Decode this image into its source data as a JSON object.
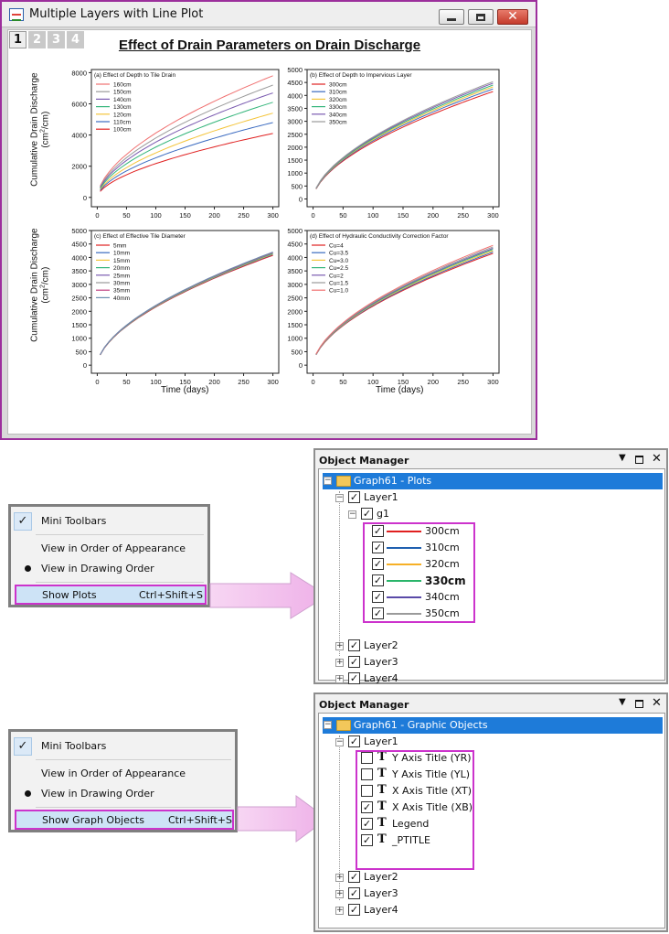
{
  "window": {
    "title": "Multiple Layers with Line Plot",
    "layer_tabs": [
      "1",
      "2",
      "3",
      "4"
    ],
    "active_layer": "1"
  },
  "graph": {
    "title": "Effect of Drain Parameters on Drain Discharge",
    "ylabel_line1": "Cumulative Drain Discharge",
    "ylabel_unit": "(cm",
    "ylabel_unit_sup": "2",
    "ylabel_unit_end": "/cm)",
    "xlabel": "Time (days)"
  },
  "chart_data": [
    {
      "type": "line",
      "title": "(a) Effect of Depth to Tile Drain",
      "x": [
        0,
        50,
        100,
        150,
        200,
        250,
        300
      ],
      "xlim": [
        -10,
        310
      ],
      "ylim": [
        -600,
        8200
      ],
      "yticks": [
        0,
        2000,
        4000,
        6000,
        8000
      ],
      "xticks": [
        0,
        50,
        100,
        150,
        200,
        250,
        300
      ],
      "series": [
        {
          "name": "160cm",
          "color": "#f07070",
          "final": 7800
        },
        {
          "name": "150cm",
          "color": "#9a9a9a",
          "final": 7200
        },
        {
          "name": "140cm",
          "color": "#7a5ab0",
          "final": 6700
        },
        {
          "name": "130cm",
          "color": "#33b57a",
          "final": 6100
        },
        {
          "name": "120cm",
          "color": "#f4c43a",
          "final": 5400
        },
        {
          "name": "110cm",
          "color": "#3a6ac0",
          "final": 4800
        },
        {
          "name": "100cm",
          "color": "#e02020",
          "final": 4100
        }
      ]
    },
    {
      "type": "line",
      "title": "(b) Effect of Depth to Impervious Layer",
      "x": [
        0,
        50,
        100,
        150,
        200,
        250,
        300
      ],
      "xlim": [
        -10,
        310
      ],
      "ylim": [
        -300,
        5000
      ],
      "yticks": [
        0,
        500,
        1000,
        1500,
        2000,
        2500,
        3000,
        3500,
        4000,
        4500,
        5000
      ],
      "xticks": [
        0,
        50,
        100,
        150,
        200,
        250,
        300
      ],
      "series": [
        {
          "name": "300cm",
          "color": "#e02020",
          "final": 4150
        },
        {
          "name": "310cm",
          "color": "#3a6ac0",
          "final": 4250
        },
        {
          "name": "320cm",
          "color": "#f4c43a",
          "final": 4330
        },
        {
          "name": "330cm",
          "color": "#33b57a",
          "final": 4400
        },
        {
          "name": "340cm",
          "color": "#7a5ab0",
          "final": 4470
        },
        {
          "name": "350cm",
          "color": "#9a9a9a",
          "final": 4530
        }
      ]
    },
    {
      "type": "line",
      "title": "(c) Effect of Effective Tile Diameter",
      "x": [
        0,
        50,
        100,
        150,
        200,
        250,
        300
      ],
      "xlim": [
        -10,
        310
      ],
      "ylim": [
        -300,
        5000
      ],
      "yticks": [
        0,
        500,
        1000,
        1500,
        2000,
        2500,
        3000,
        3500,
        4000,
        4500,
        5000
      ],
      "xticks": [
        0,
        50,
        100,
        150,
        200,
        250,
        300
      ],
      "series": [
        {
          "name": "5mm",
          "color": "#e02020",
          "final": 4080
        },
        {
          "name": "10mm",
          "color": "#3a6ac0",
          "final": 4110
        },
        {
          "name": "15mm",
          "color": "#f4c43a",
          "final": 4130
        },
        {
          "name": "20mm",
          "color": "#33b57a",
          "final": 4150
        },
        {
          "name": "25mm",
          "color": "#7a5ab0",
          "final": 4170
        },
        {
          "name": "30mm",
          "color": "#9a9a9a",
          "final": 4180
        },
        {
          "name": "35mm",
          "color": "#c04080",
          "final": 4190
        },
        {
          "name": "40mm",
          "color": "#6a8fb0",
          "final": 4200
        }
      ]
    },
    {
      "type": "line",
      "title": "(d) Effect of Hydraulic Conductivity Correction Factor",
      "x": [
        0,
        50,
        100,
        150,
        200,
        250,
        300
      ],
      "xlim": [
        -10,
        310
      ],
      "ylim": [
        -300,
        5000
      ],
      "yticks": [
        0,
        500,
        1000,
        1500,
        2000,
        2500,
        3000,
        3500,
        4000,
        4500,
        5000
      ],
      "xticks": [
        0,
        50,
        100,
        150,
        200,
        250,
        300
      ],
      "series": [
        {
          "name": "Cu=4",
          "color": "#e02020",
          "final": 4150
        },
        {
          "name": "Cu=3.5",
          "color": "#3a6ac0",
          "final": 4200
        },
        {
          "name": "Cu=3.0",
          "color": "#f4c43a",
          "final": 4250
        },
        {
          "name": "Cu=2.5",
          "color": "#33b57a",
          "final": 4300
        },
        {
          "name": "Cu=2",
          "color": "#7a5ab0",
          "final": 4340
        },
        {
          "name": "Cu=1.5",
          "color": "#9a9a9a",
          "final": 4390
        },
        {
          "name": "Cu=1.0",
          "color": "#f07070",
          "final": 4450
        }
      ]
    }
  ],
  "menu1": {
    "items": [
      "Mini Toolbars",
      "View in Order of Appearance",
      "View in Drawing Order",
      "Show Plots"
    ],
    "shortcut": "Ctrl+Shift+S"
  },
  "menu2": {
    "items": [
      "Mini Toolbars",
      "View in Order of Appearance",
      "View in Drawing Order",
      "Show Graph Objects"
    ],
    "shortcut": "Ctrl+Shift+S"
  },
  "om1": {
    "title": "Object Manager",
    "root": "Graph61 - Plots",
    "layer1": "Layer1",
    "group": "g1",
    "plots": [
      {
        "label": "300cm",
        "color": "#e02020",
        "bold": false
      },
      {
        "label": "310cm",
        "color": "#2060b0",
        "bold": false
      },
      {
        "label": "320cm",
        "color": "#f6b026",
        "bold": false
      },
      {
        "label": "330cm",
        "color": "#2ab56a",
        "bold": true
      },
      {
        "label": "340cm",
        "color": "#5a4aa8",
        "bold": false
      },
      {
        "label": "350cm",
        "color": "#9a9a9a",
        "bold": false
      }
    ],
    "layers": [
      "Layer2",
      "Layer3",
      "Layer4"
    ]
  },
  "om2": {
    "title": "Object Manager",
    "root": "Graph61 - Graphic Objects",
    "layer1": "Layer1",
    "objects": [
      {
        "label": "Y Axis Title (YR)",
        "checked": false
      },
      {
        "label": "Y Axis Title (YL)",
        "checked": false
      },
      {
        "label": "X Axis Title (XT)",
        "checked": false
      },
      {
        "label": "X Axis Title (XB)",
        "checked": true
      },
      {
        "label": "Legend",
        "checked": true
      },
      {
        "label": "_PTITLE",
        "checked": true
      }
    ],
    "layers": [
      "Layer2",
      "Layer3",
      "Layer4"
    ]
  },
  "icons": {
    "app": "graph-window-icon",
    "minimize": "minimize-icon",
    "maximize": "maximize-icon",
    "close": "close-icon",
    "check": "checkmark-icon",
    "bullet": "radio-bullet-icon",
    "dropdown": "dropdown-arrow-icon",
    "pin": "maximize-pane-icon",
    "text": "text-object-icon",
    "folder": "folder-icon"
  }
}
